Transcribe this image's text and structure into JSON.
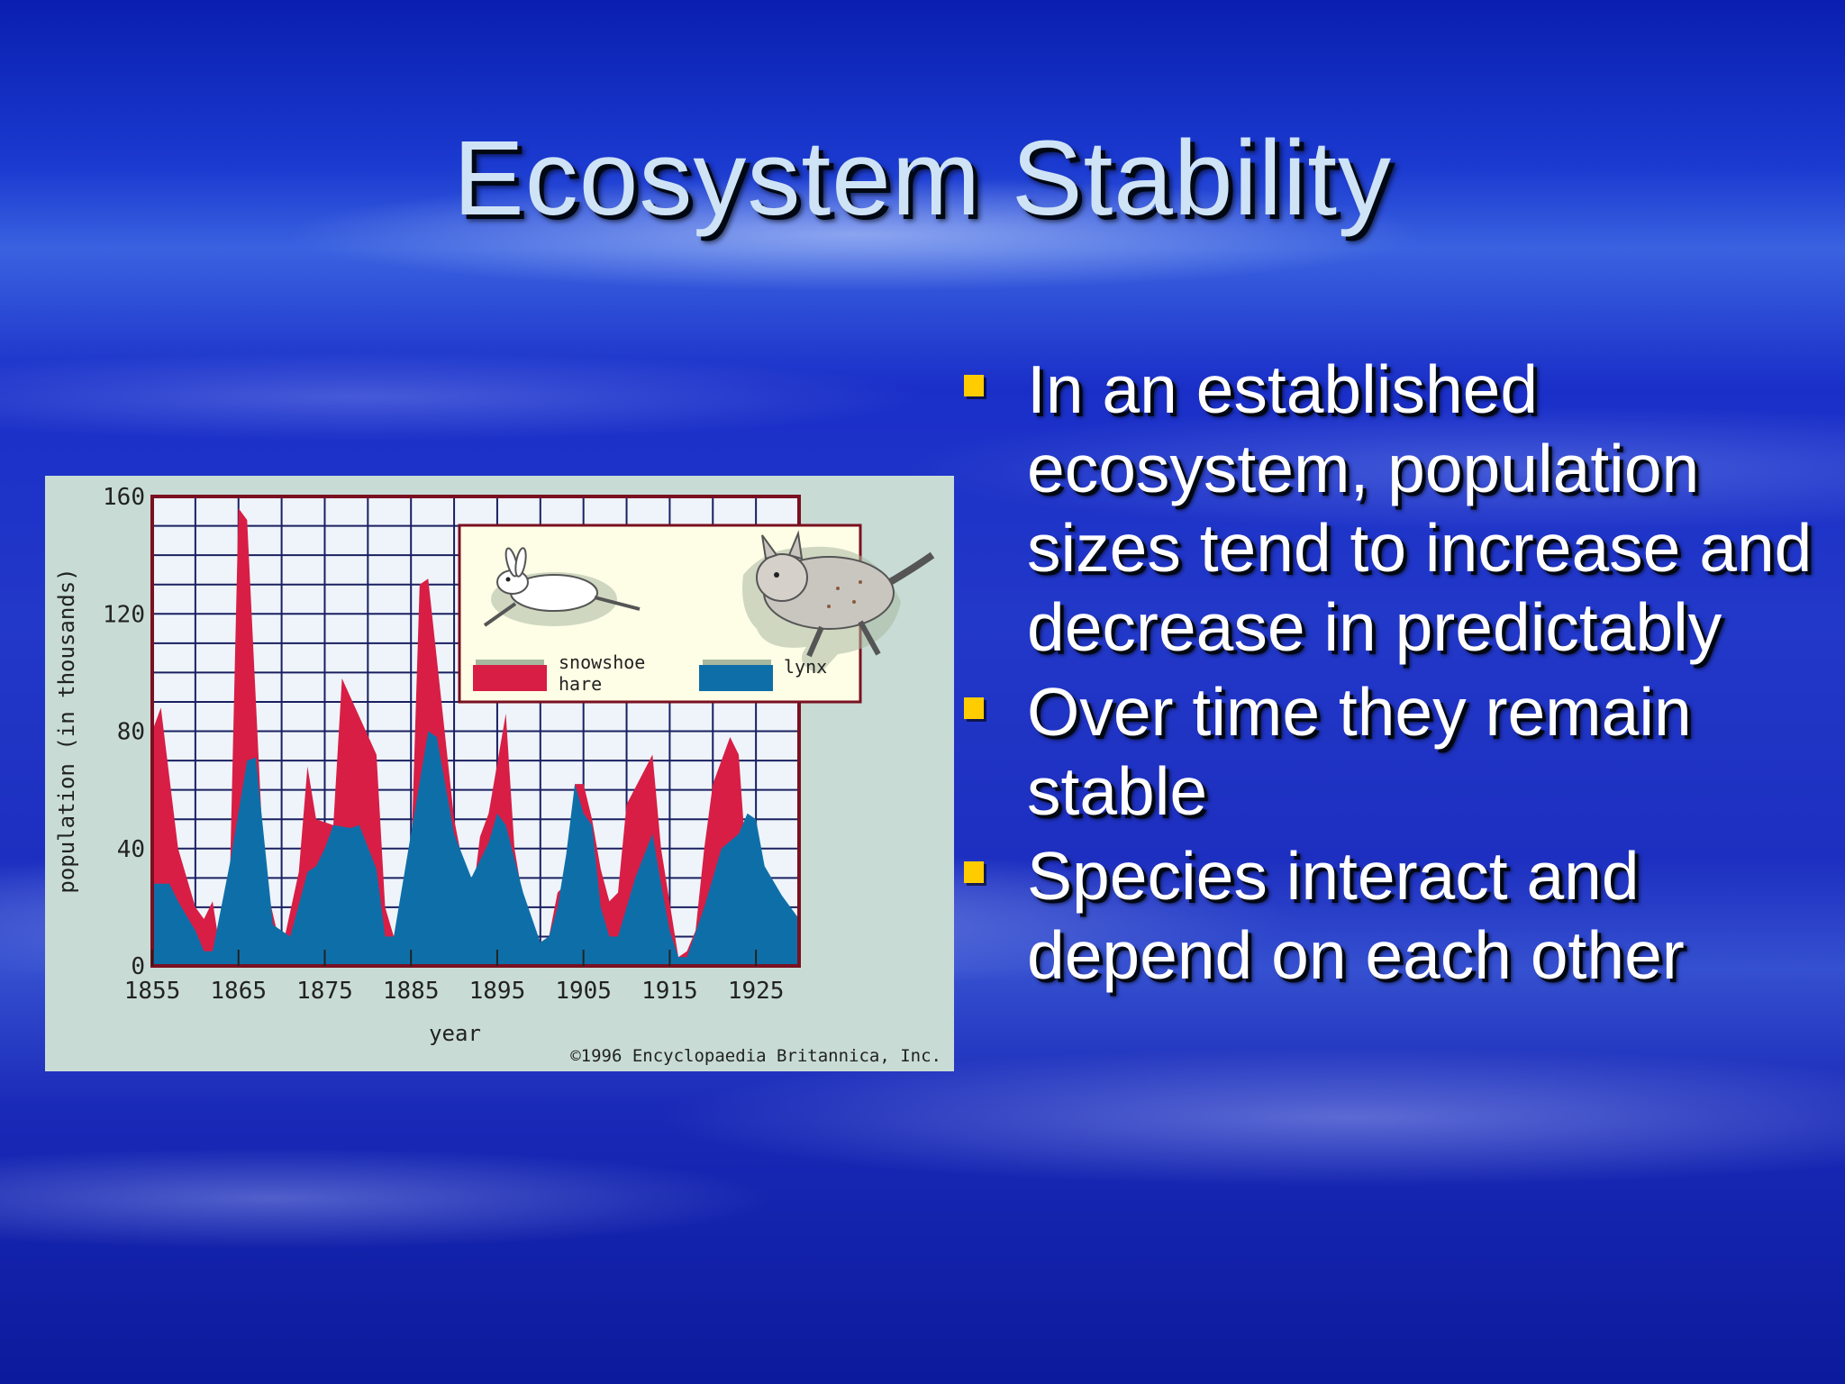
{
  "slide": {
    "title": "Ecosystem Stability",
    "bullets": [
      "In an established ecosystem, population sizes tend to increase and decrease in predictably",
      "Over time they remain stable",
      "Species interact and depend on each other"
    ],
    "bullet_color": "#ffcc00"
  },
  "chart_data": {
    "type": "area",
    "xlabel": "year",
    "ylabel": "population (in thousands)",
    "xlim": [
      1855,
      1930
    ],
    "ylim": [
      0,
      160
    ],
    "x_ticks": [
      "1855",
      "1865",
      "1875",
      "1885",
      "1895",
      "1905",
      "1915",
      "1925"
    ],
    "y_ticks": [
      "0",
      "40",
      "80",
      "120",
      "160"
    ],
    "grid": true,
    "legend_position": "top-right",
    "credit": "©1996 Encyclopaedia Britannica, Inc.",
    "series": [
      {
        "name": "snowshoe hare",
        "color": "#d81e45",
        "points": [
          [
            1855,
            80
          ],
          [
            1856,
            88
          ],
          [
            1858,
            40
          ],
          [
            1860,
            20
          ],
          [
            1861,
            16
          ],
          [
            1862,
            22
          ],
          [
            1863,
            3
          ],
          [
            1864,
            30
          ],
          [
            1865,
            156
          ],
          [
            1866,
            152
          ],
          [
            1868,
            30
          ],
          [
            1870,
            5
          ],
          [
            1872,
            32
          ],
          [
            1873,
            68
          ],
          [
            1874,
            50
          ],
          [
            1876,
            48
          ],
          [
            1877,
            98
          ],
          [
            1879,
            85
          ],
          [
            1881,
            72
          ],
          [
            1882,
            20
          ],
          [
            1883,
            10
          ],
          [
            1885,
            35
          ],
          [
            1886,
            130
          ],
          [
            1887,
            132
          ],
          [
            1890,
            50
          ],
          [
            1892,
            20
          ],
          [
            1893,
            44
          ],
          [
            1894,
            52
          ],
          [
            1896,
            86
          ],
          [
            1897,
            40
          ],
          [
            1899,
            5
          ],
          [
            1900,
            8
          ],
          [
            1901,
            10
          ],
          [
            1902,
            25
          ],
          [
            1903,
            28
          ],
          [
            1904,
            62
          ],
          [
            1905,
            62
          ],
          [
            1906,
            50
          ],
          [
            1907,
            33
          ],
          [
            1908,
            22
          ],
          [
            1909,
            25
          ],
          [
            1910,
            55
          ],
          [
            1913,
            72
          ],
          [
            1914,
            40
          ],
          [
            1916,
            3
          ],
          [
            1917,
            5
          ],
          [
            1918,
            12
          ],
          [
            1919,
            40
          ],
          [
            1920,
            62
          ],
          [
            1922,
            78
          ],
          [
            1923,
            72
          ],
          [
            1924,
            30
          ],
          [
            1925,
            20
          ],
          [
            1930,
            5
          ]
        ]
      },
      {
        "name": "lynx",
        "color": "#0e6fa8",
        "points": [
          [
            1855,
            28
          ],
          [
            1857,
            28
          ],
          [
            1858,
            22
          ],
          [
            1860,
            12
          ],
          [
            1861,
            5
          ],
          [
            1862,
            5
          ],
          [
            1864,
            35
          ],
          [
            1866,
            70
          ],
          [
            1867,
            71
          ],
          [
            1869,
            14
          ],
          [
            1871,
            10
          ],
          [
            1873,
            32
          ],
          [
            1874,
            34
          ],
          [
            1875,
            40
          ],
          [
            1876,
            48
          ],
          [
            1878,
            47
          ],
          [
            1879,
            48
          ],
          [
            1881,
            33
          ],
          [
            1882,
            10
          ],
          [
            1883,
            10
          ],
          [
            1885,
            45
          ],
          [
            1887,
            80
          ],
          [
            1888,
            78
          ],
          [
            1890,
            45
          ],
          [
            1892,
            30
          ],
          [
            1894,
            42
          ],
          [
            1895,
            52
          ],
          [
            1896,
            48
          ],
          [
            1898,
            25
          ],
          [
            1900,
            8
          ],
          [
            1901,
            10
          ],
          [
            1902,
            20
          ],
          [
            1903,
            38
          ],
          [
            1904,
            62
          ],
          [
            1905,
            52
          ],
          [
            1906,
            48
          ],
          [
            1907,
            20
          ],
          [
            1908,
            10
          ],
          [
            1909,
            10
          ],
          [
            1911,
            30
          ],
          [
            1913,
            45
          ],
          [
            1914,
            28
          ],
          [
            1915,
            12
          ],
          [
            1916,
            3
          ],
          [
            1917,
            3
          ],
          [
            1919,
            20
          ],
          [
            1921,
            40
          ],
          [
            1923,
            45
          ],
          [
            1924,
            52
          ],
          [
            1925,
            50
          ],
          [
            1926,
            34
          ],
          [
            1928,
            24
          ],
          [
            1930,
            16
          ]
        ]
      }
    ]
  }
}
